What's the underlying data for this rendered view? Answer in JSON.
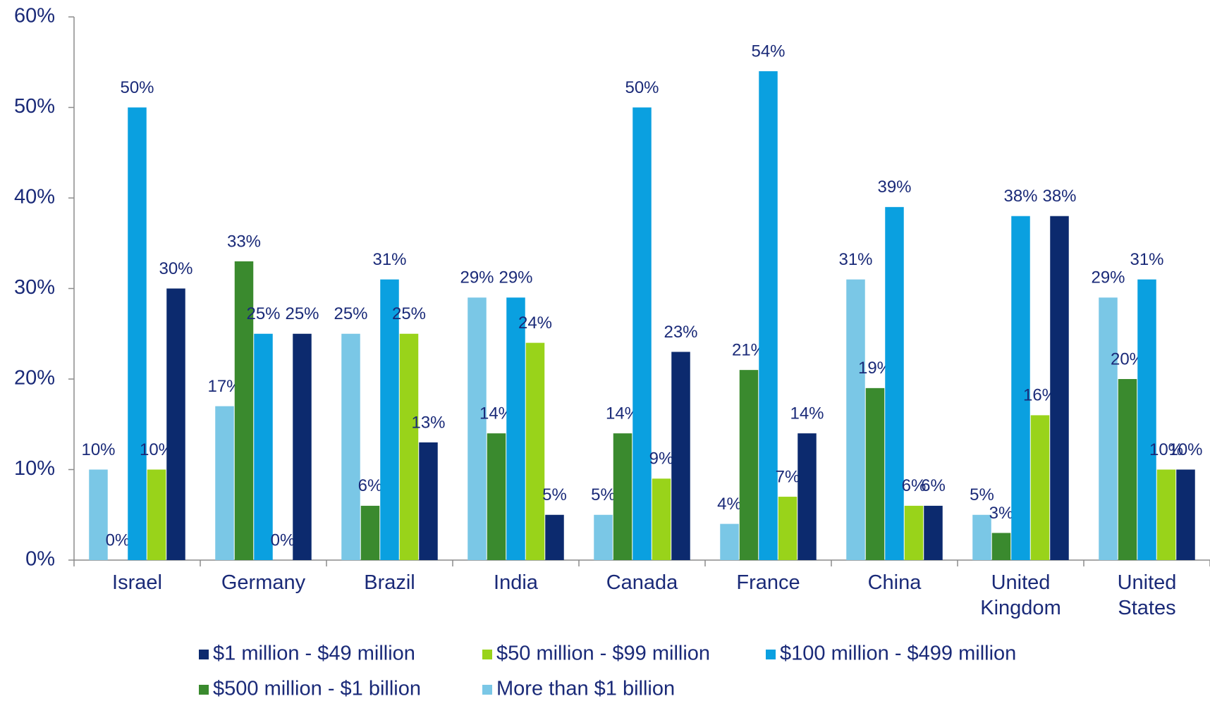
{
  "chart_data": {
    "type": "bar",
    "categories": [
      "Israel",
      "Germany",
      "Brazil",
      "India",
      "Canada",
      "France",
      "China",
      "United Kingdom",
      "United States"
    ],
    "series": [
      {
        "name": "$1 million - $49 million",
        "color": "#0c2a6e",
        "values": [
          30,
          25,
          13,
          5,
          23,
          14,
          6,
          38,
          10
        ],
        "value_labels": [
          "30%",
          "25%",
          "13%",
          "5%",
          "23%",
          "14%",
          "6%",
          "38%",
          "10%"
        ]
      },
      {
        "name": "$50 million - $99 million",
        "color": "#99d31a",
        "values": [
          10,
          0,
          25,
          24,
          9,
          7,
          6,
          16,
          10
        ],
        "value_labels": [
          "10%",
          "0%",
          "25%",
          "24%",
          "9%",
          "7%",
          "6%",
          "16%",
          "10%"
        ]
      },
      {
        "name": "$100 million - $499 million",
        "color": "#0aa0e0",
        "values": [
          50,
          25,
          31,
          29,
          50,
          54,
          39,
          38,
          31
        ],
        "value_labels": [
          "50%",
          "25%",
          "31%",
          "29%",
          "50%",
          "54%",
          "39%",
          "38%",
          "31%"
        ]
      },
      {
        "name": "$500 million - $1 billion",
        "color": "#3a8a2e",
        "values": [
          0,
          33,
          6,
          14,
          14,
          21,
          19,
          3,
          20
        ],
        "value_labels": [
          "0%",
          "33%",
          "6%",
          "14%",
          "14%",
          "21%",
          "19%",
          "3%",
          "20%"
        ]
      },
      {
        "name": "More than $1 billion",
        "color": "#7ac7e6",
        "values": [
          10,
          17,
          25,
          29,
          5,
          4,
          31,
          5,
          29
        ],
        "value_labels": [
          "10%",
          "17%",
          "25%",
          "29%",
          "5%",
          "4%",
          "31%",
          "5%",
          "29%"
        ]
      }
    ],
    "ylim": [
      0,
      60
    ],
    "yticks": [
      {
        "value": 0,
        "label": "0%"
      },
      {
        "value": 10,
        "label": "10%"
      },
      {
        "value": 20,
        "label": "20%"
      },
      {
        "value": 30,
        "label": "30%"
      },
      {
        "value": 40,
        "label": "40%"
      },
      {
        "value": 50,
        "label": "50%"
      },
      {
        "value": 60,
        "label": "60%"
      }
    ],
    "grid": false
  }
}
